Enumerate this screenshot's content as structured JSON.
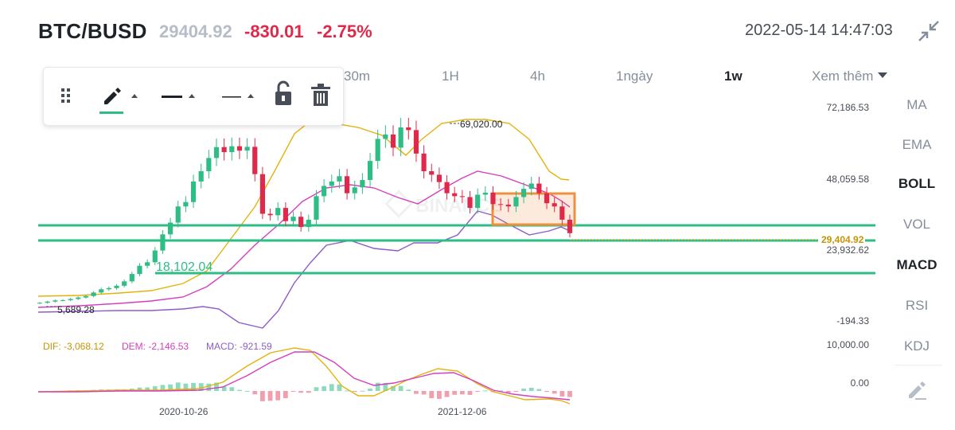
{
  "header": {
    "symbol": "BTC/BUSD",
    "price": "29404.92",
    "change": "-830.01",
    "change_pct": "-2.75%",
    "datetime": "2022-05-14 14:47:03",
    "collapse_icon": "collapse-arrows-icon"
  },
  "intervals": {
    "items": [
      "30m",
      "1H",
      "4h",
      "1ngày",
      "1w"
    ],
    "active": "1w",
    "more": "Xem thêm"
  },
  "drawing_toolbar": {
    "icons": [
      "drag-handle-icon",
      "pencil-icon",
      "line-width-icon",
      "line-style-icon",
      "unlock-icon",
      "trash-icon"
    ],
    "pencil_color": "#2ebd85"
  },
  "side_indicators": {
    "items": [
      "MA",
      "EMA",
      "BOLL",
      "VOL",
      "MACD",
      "RSI",
      "KDJ"
    ],
    "active": [
      "BOLL",
      "MACD"
    ],
    "edit_icon": "pencil-edit-icon"
  },
  "price_axis": {
    "labels": [
      "72,186.53",
      "48,059.58",
      "23,932.62",
      "-194.33"
    ],
    "current_price_label": "29,404.92"
  },
  "macd_axis": {
    "labels": [
      "10,000.00",
      "0.00"
    ]
  },
  "annotations": {
    "high": "69,020.00",
    "low": "5,689.28",
    "level_label": "18,102.04"
  },
  "macd_legend": {
    "dif": "DIF: -3,068.12",
    "dem": "DEM: -2,146.53",
    "macd": "MACD: -921.59"
  },
  "time_axis": [
    "2020-10-26",
    "2021-12-06"
  ],
  "colors": {
    "up": "#2ebd85",
    "down": "#e0294a",
    "boll_upper": "#e3b30d",
    "boll_mid": "#d43fbf",
    "boll_lower": "#8e5cc7",
    "support_line": "#2ebd85",
    "box": "#f0903c"
  },
  "chart_data": {
    "type": "candlestick",
    "symbol": "BTC/BUSD",
    "interval": "1w",
    "price_axis_ticks": [
      72186.53,
      48059.58,
      23932.62,
      -194.33
    ],
    "current_price": 29404.92,
    "high_marker": 69020.0,
    "low_marker": 5689.28,
    "horizontal_levels": [
      18102.04
    ],
    "series": [
      {
        "name": "close",
        "values": [
          5700,
          6100,
          6500,
          6600,
          7000,
          7500,
          8000,
          9200,
          10300,
          10700,
          11500,
          13000,
          15500,
          18300,
          19500,
          23500,
          29000,
          33000,
          38500,
          40000,
          47000,
          50500,
          55000,
          58700,
          57000,
          59000,
          57500,
          58800,
          49500,
          36000,
          35500,
          38000,
          33500,
          35000,
          31500,
          34000,
          42000,
          45500,
          47000,
          48800,
          43000,
          45000,
          47500,
          54000,
          61500,
          63000,
          58500,
          65400,
          64500,
          56500,
          50500,
          49300,
          46800,
          43000,
          42000,
          41700,
          38000,
          42500,
          43200,
          39300,
          39100,
          38500,
          41700,
          44500,
          46300,
          43000,
          39600,
          38500,
          34000,
          29404.92
        ]
      }
    ],
    "macd_ticks": [
      10000.0,
      0.0
    ],
    "macd_legend": {
      "DIF": -3068.12,
      "DEM": -2146.53,
      "MACD": -921.59
    },
    "time_labels": [
      "2020-10-26",
      "2021-12-06"
    ]
  }
}
